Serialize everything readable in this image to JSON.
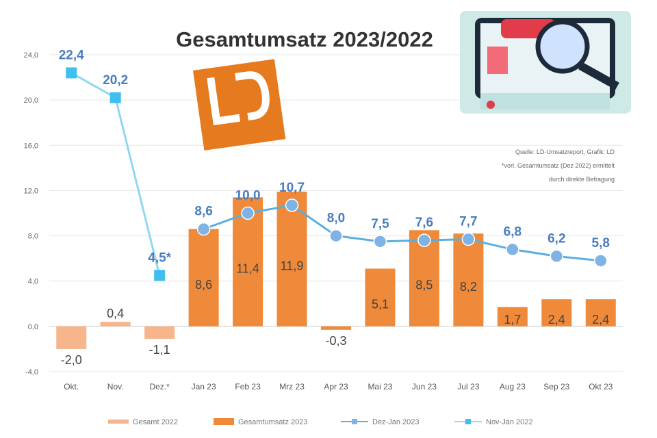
{
  "chart_data": {
    "type": "bar",
    "title": "Gesamtumsatz 2023/2022",
    "categories": [
      "Okt.",
      "Nov.",
      "Dez.*",
      "Jan 23",
      "Feb 23",
      "Mrz 23",
      "Apr 23",
      "Mai 23",
      "Jun 23",
      "Jul 23",
      "Aug 23",
      "Sep 23",
      "Okt 23"
    ],
    "ylim": [
      -4.0,
      24.0
    ],
    "y_ticks": [
      "-4,0",
      "0,0",
      "4,0",
      "8,0",
      "12,0",
      "16,0",
      "20,0",
      "24,0"
    ],
    "y_tick_values": [
      -4,
      0,
      4,
      8,
      12,
      16,
      20,
      24
    ],
    "grid": true,
    "legend_position": "bottom",
    "series": [
      {
        "name": "Gesamt 2022",
        "kind": "bar",
        "color": "#f7b58c",
        "values": [
          -2.0,
          0.4,
          -1.1,
          null,
          null,
          null,
          null,
          null,
          null,
          null,
          null,
          null,
          null
        ],
        "labels": [
          "-2,0",
          "0,4",
          "-1,1",
          "",
          "",
          "",
          "",
          "",
          "",
          "",
          "",
          "",
          ""
        ]
      },
      {
        "name": "Gesamtumsatz 2023",
        "kind": "bar",
        "color": "#ef8a3a",
        "values": [
          null,
          null,
          null,
          8.6,
          11.4,
          11.9,
          -0.3,
          5.1,
          8.5,
          8.2,
          1.7,
          2.4,
          2.4
        ],
        "labels": [
          "",
          "",
          "",
          "8,6",
          "11,4",
          "11,9",
          "-0,3",
          "5,1",
          "8,5",
          "8,2",
          "1,7",
          "2,4",
          "2,4"
        ]
      },
      {
        "name": "Dez-Jan 2023",
        "kind": "line",
        "color": "#5aaee0",
        "marker_color": "#7fb3e6",
        "values": [
          null,
          null,
          null,
          8.6,
          10.0,
          10.7,
          8.0,
          7.5,
          7.6,
          7.7,
          6.8,
          6.2,
          5.8
        ],
        "labels": [
          "",
          "",
          "",
          "8,6",
          "10,0",
          "10,7",
          "8,0",
          "7,5",
          "7,6",
          "7,7",
          "6,8",
          "6,2",
          "5,8"
        ]
      },
      {
        "name": "Nov-Jan 2022",
        "kind": "line",
        "color": "#8fd8f0",
        "marker_color": "#3fbef0",
        "values": [
          22.4,
          20.2,
          4.5,
          null,
          null,
          null,
          null,
          null,
          null,
          null,
          null,
          null,
          null
        ],
        "labels": [
          "22,4",
          "20,2",
          "4,5*",
          "",
          "",
          "",
          "",
          "",
          "",
          "",
          "",
          "",
          ""
        ]
      }
    ],
    "source_note": [
      "Quelle: LD-Umsatzreport, Grafik: LD",
      "*vorl. Gesamtumsatz (Dez 2022) ermittelt",
      "durch direkte Befragung"
    ]
  },
  "logo": {
    "name": "ld-logo-icon",
    "color": "#e57a1f"
  },
  "illustration": {
    "name": "magnifier-analytics-icon"
  }
}
